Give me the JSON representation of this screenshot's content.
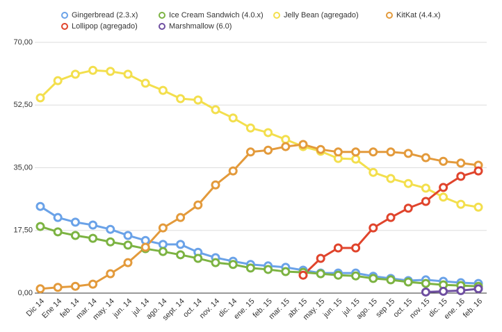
{
  "chart_data": {
    "type": "line",
    "categories": [
      "Dic 14",
      "Ene 14",
      "feb. 14",
      "mar. 14",
      "may. 14",
      "jun. 14",
      "jul. 14",
      "ago. 14",
      "sept. 14",
      "oct. 14",
      "nov. 14",
      "dic. 14",
      "ene. 15",
      "feb. 15",
      "mar. 15",
      "abr. 15",
      "may. 15",
      "jun. 15",
      "jul. 15",
      "ago. 15",
      "sep 15",
      "oct. 15",
      "nov. 15",
      "dic. 15",
      "ene. 16",
      "feb. 16"
    ],
    "series": [
      {
        "name": "Gingerbread (2.3.x)",
        "color": "#6aa2e8",
        "values": [
          24.2,
          21.1,
          19.8,
          19.0,
          17.8,
          16.1,
          14.7,
          13.6,
          13.6,
          11.4,
          9.9,
          8.9,
          8.0,
          7.6,
          7.2,
          6.4,
          5.6,
          5.6,
          5.6,
          4.7,
          4.1,
          3.5,
          3.7,
          3.3,
          2.9,
          2.7
        ]
      },
      {
        "name": "Ice Cream Sandwich (4.0.x)",
        "color": "#7cb342",
        "values": [
          18.6,
          17.1,
          16.1,
          15.3,
          14.3,
          13.4,
          12.4,
          11.6,
          10.7,
          9.7,
          8.5,
          8.0,
          7.0,
          6.6,
          6.0,
          5.8,
          5.4,
          5.0,
          4.8,
          4.1,
          3.7,
          3.1,
          2.7,
          2.3,
          2.1,
          1.9
        ]
      },
      {
        "name": "Jelly Bean (agregado)",
        "color": "#f3df4d",
        "values": [
          54.5,
          59.3,
          61.1,
          62.2,
          61.9,
          61.1,
          58.6,
          56.6,
          54.3,
          53.9,
          51.2,
          48.9,
          46.1,
          44.8,
          42.9,
          40.9,
          39.6,
          37.6,
          37.4,
          33.7,
          32.0,
          30.6,
          29.3,
          26.8,
          24.8,
          24.0
        ]
      },
      {
        "name": "KitKat (4.4.x)",
        "color": "#e39a3b",
        "values": [
          1.2,
          1.6,
          1.9,
          2.5,
          5.4,
          8.5,
          12.8,
          18.2,
          21.1,
          24.6,
          30.2,
          34.1,
          39.4,
          39.9,
          40.9,
          41.5,
          40.1,
          39.4,
          39.4,
          39.4,
          39.4,
          39.0,
          37.8,
          36.8,
          36.3,
          35.7
        ]
      },
      {
        "name": "Lollipop (agregado)",
        "color": "#e0442c",
        "values": [
          null,
          null,
          null,
          null,
          null,
          null,
          null,
          null,
          null,
          null,
          null,
          null,
          null,
          null,
          null,
          5.0,
          9.7,
          12.6,
          12.6,
          18.2,
          21.1,
          23.7,
          25.6,
          29.5,
          32.6,
          34.1
        ]
      },
      {
        "name": "Marshmallow (6.0)",
        "color": "#6e4ea0",
        "values": [
          null,
          null,
          null,
          null,
          null,
          null,
          null,
          null,
          null,
          null,
          null,
          null,
          null,
          null,
          null,
          null,
          null,
          null,
          null,
          null,
          null,
          null,
          0.3,
          0.5,
          0.7,
          1.2
        ]
      }
    ],
    "ylim": [
      0,
      70
    ],
    "yticks": [
      {
        "value": 0,
        "label": "0,00"
      },
      {
        "value": 17.5,
        "label": "17,50"
      },
      {
        "value": 35,
        "label": "35,00"
      },
      {
        "value": 52.5,
        "label": "52,50"
      },
      {
        "value": 70,
        "label": "70,00"
      }
    ],
    "grid": true
  }
}
